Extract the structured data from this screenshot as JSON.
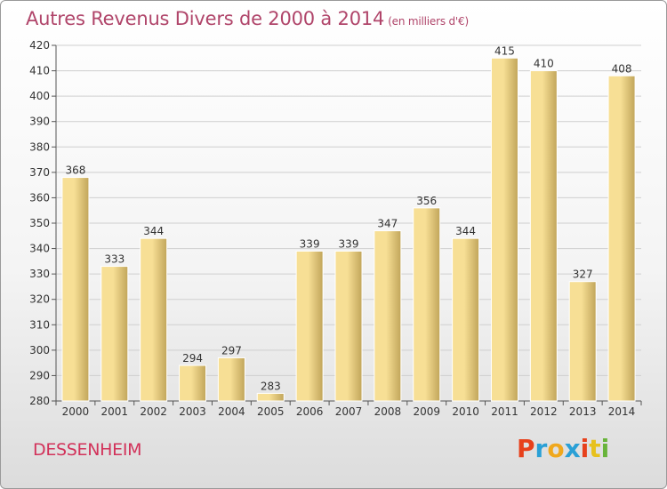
{
  "header": {
    "title": "Autres Revenus Divers de 2000 à 2014",
    "subtitle": "(en milliers d'€)"
  },
  "footer": {
    "city": "DESSENHEIM",
    "logo_text": "Proxiti",
    "logo_colors": [
      "#e7411c",
      "#2aa0d6",
      "#f0a81d",
      "#2aa0d6",
      "#e7411c",
      "#e7c11d",
      "#68b43a"
    ]
  },
  "colors": {
    "title": "#b0456a",
    "bar_light": "#f7df95",
    "bar_dark": "#c1a55a",
    "grid": "#cfcfcf"
  },
  "chart_data": {
    "type": "bar",
    "title": "Autres Revenus Divers de 2000 à 2014",
    "subtitle": "(en milliers d'€)",
    "categories": [
      "2000",
      "2001",
      "2002",
      "2003",
      "2004",
      "2005",
      "2006",
      "2007",
      "2008",
      "2009",
      "2010",
      "2011",
      "2012",
      "2013",
      "2014"
    ],
    "values": [
      368,
      333,
      344,
      294,
      297,
      283,
      339,
      339,
      347,
      356,
      344,
      415,
      410,
      327,
      408
    ],
    "ylim": [
      280,
      420
    ],
    "yticks": [
      280,
      290,
      300,
      310,
      320,
      330,
      340,
      350,
      360,
      370,
      380,
      390,
      400,
      410,
      420
    ],
    "grid": true,
    "data_labels": true
  }
}
